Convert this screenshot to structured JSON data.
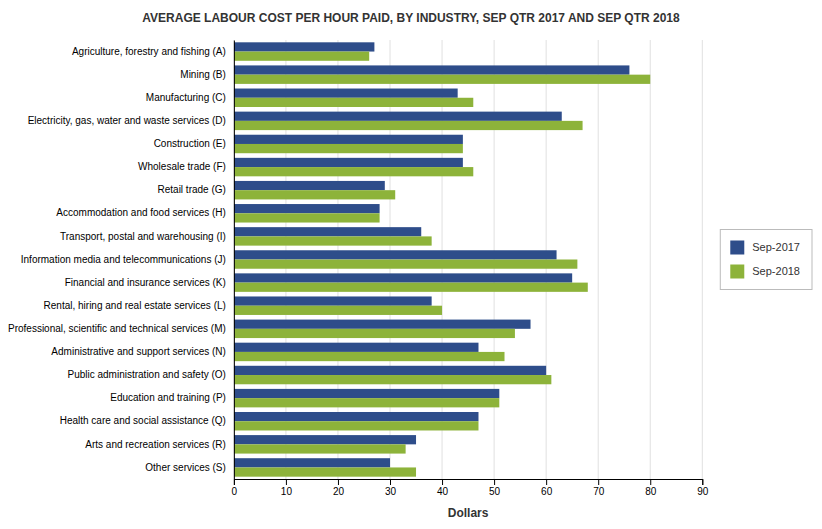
{
  "chart_data": {
    "type": "bar",
    "orientation": "horizontal",
    "title": "AVERAGE LABOUR COST PER HOUR PAID, BY INDUSTRY, SEP QTR 2017 AND SEP QTR 2018",
    "categories": [
      "Agriculture, forestry and fishing (A)",
      "Mining (B)",
      "Manufacturing (C)",
      "Electricity, gas, water and waste services (D)",
      "Construction (E)",
      "Wholesale trade (F)",
      "Retail trade (G)",
      "Accommodation and food services (H)",
      "Transport, postal and warehousing (I)",
      "Information media and telecommunications (J)",
      "Financial and insurance services (K)",
      "Rental, hiring and real estate services (L)",
      "Professional, scientific and technical services (M)",
      "Administrative and support services (N)",
      "Public administration and safety (O)",
      "Education and training (P)",
      "Health care and social assistance (Q)",
      "Arts and recreation services (R)",
      "Other services (S)"
    ],
    "series": [
      {
        "name": "Sep-2017",
        "color": "#2E4D8A",
        "values": [
          27,
          76,
          43,
          63,
          44,
          44,
          29,
          28,
          36,
          62,
          65,
          38,
          57,
          47,
          60,
          51,
          47,
          35,
          30
        ]
      },
      {
        "name": "Sep-2018",
        "color": "#8DB33A",
        "values": [
          26,
          80,
          46,
          67,
          44,
          46,
          31,
          28,
          38,
          66,
          68,
          40,
          54,
          52,
          61,
          51,
          47,
          33,
          35
        ]
      }
    ],
    "xlabel": "Dollars",
    "xlim": [
      0,
      90
    ],
    "xticks": [
      0,
      10,
      20,
      30,
      40,
      50,
      60,
      70,
      80,
      90
    ],
    "grid": true,
    "legend": "right"
  }
}
